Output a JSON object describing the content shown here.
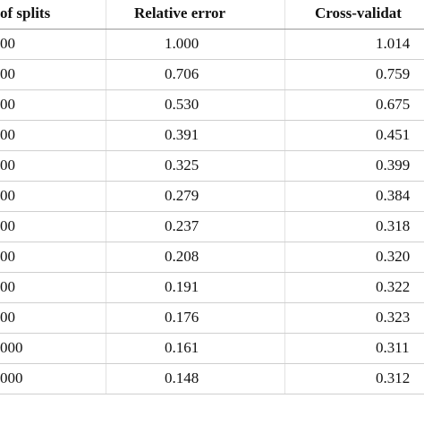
{
  "table": {
    "header": [
      "of splits",
      "Relative error",
      "Cross-validat"
    ],
    "rows": [
      [
        "00",
        "1.000",
        "1.014"
      ],
      [
        "00",
        "0.706",
        "0.759"
      ],
      [
        "00",
        "0.530",
        "0.675"
      ],
      [
        "00",
        "0.391",
        "0.451"
      ],
      [
        "00",
        "0.325",
        "0.399"
      ],
      [
        "00",
        "0.279",
        "0.384"
      ],
      [
        "00",
        "0.237",
        "0.318"
      ],
      [
        "00",
        "0.208",
        "0.320"
      ],
      [
        "00",
        "0.191",
        "0.322"
      ],
      [
        "00",
        "0.176",
        "0.323"
      ],
      [
        "000",
        "0.161",
        "0.311"
      ],
      [
        "000",
        "0.148",
        "0.312"
      ]
    ]
  }
}
